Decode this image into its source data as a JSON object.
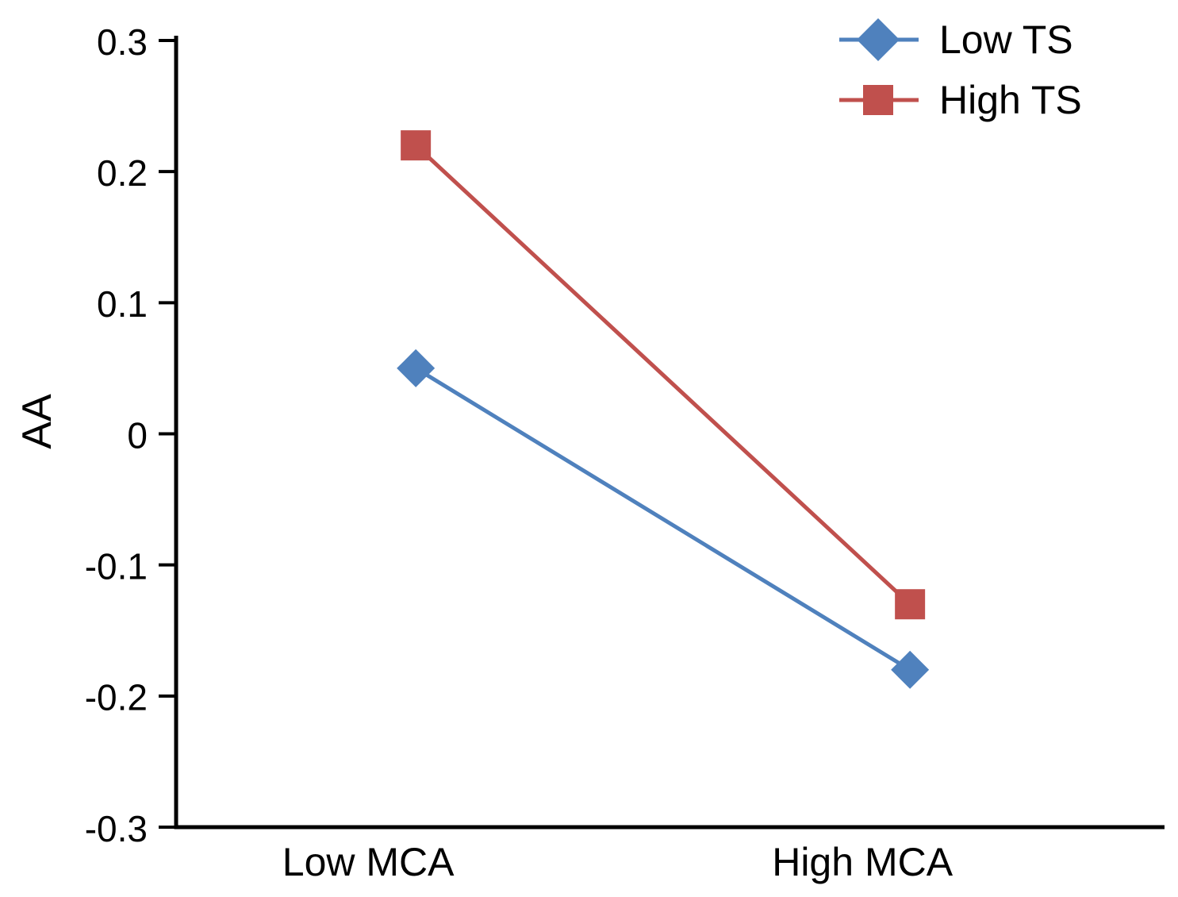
{
  "chart_data": {
    "type": "line",
    "title": "",
    "xlabel": "",
    "ylabel": "AA",
    "categories": [
      "Low MCA",
      "High MCA"
    ],
    "series": [
      {
        "name": "Low TS",
        "marker": "diamond",
        "color": "#4F81BD",
        "values": [
          0.05,
          -0.18
        ]
      },
      {
        "name": "High TS",
        "marker": "square",
        "color": "#C0504D",
        "values": [
          0.22,
          -0.13
        ]
      }
    ],
    "ylim": [
      -0.3,
      0.3
    ],
    "yticks": [
      0.3,
      0.2,
      0.1,
      0,
      -0.1,
      -0.2,
      -0.3
    ],
    "grid": false,
    "legend_position": "top-right",
    "axis_color": "#000000",
    "text_color": "#000000",
    "background_color": "#FFFFFF"
  }
}
